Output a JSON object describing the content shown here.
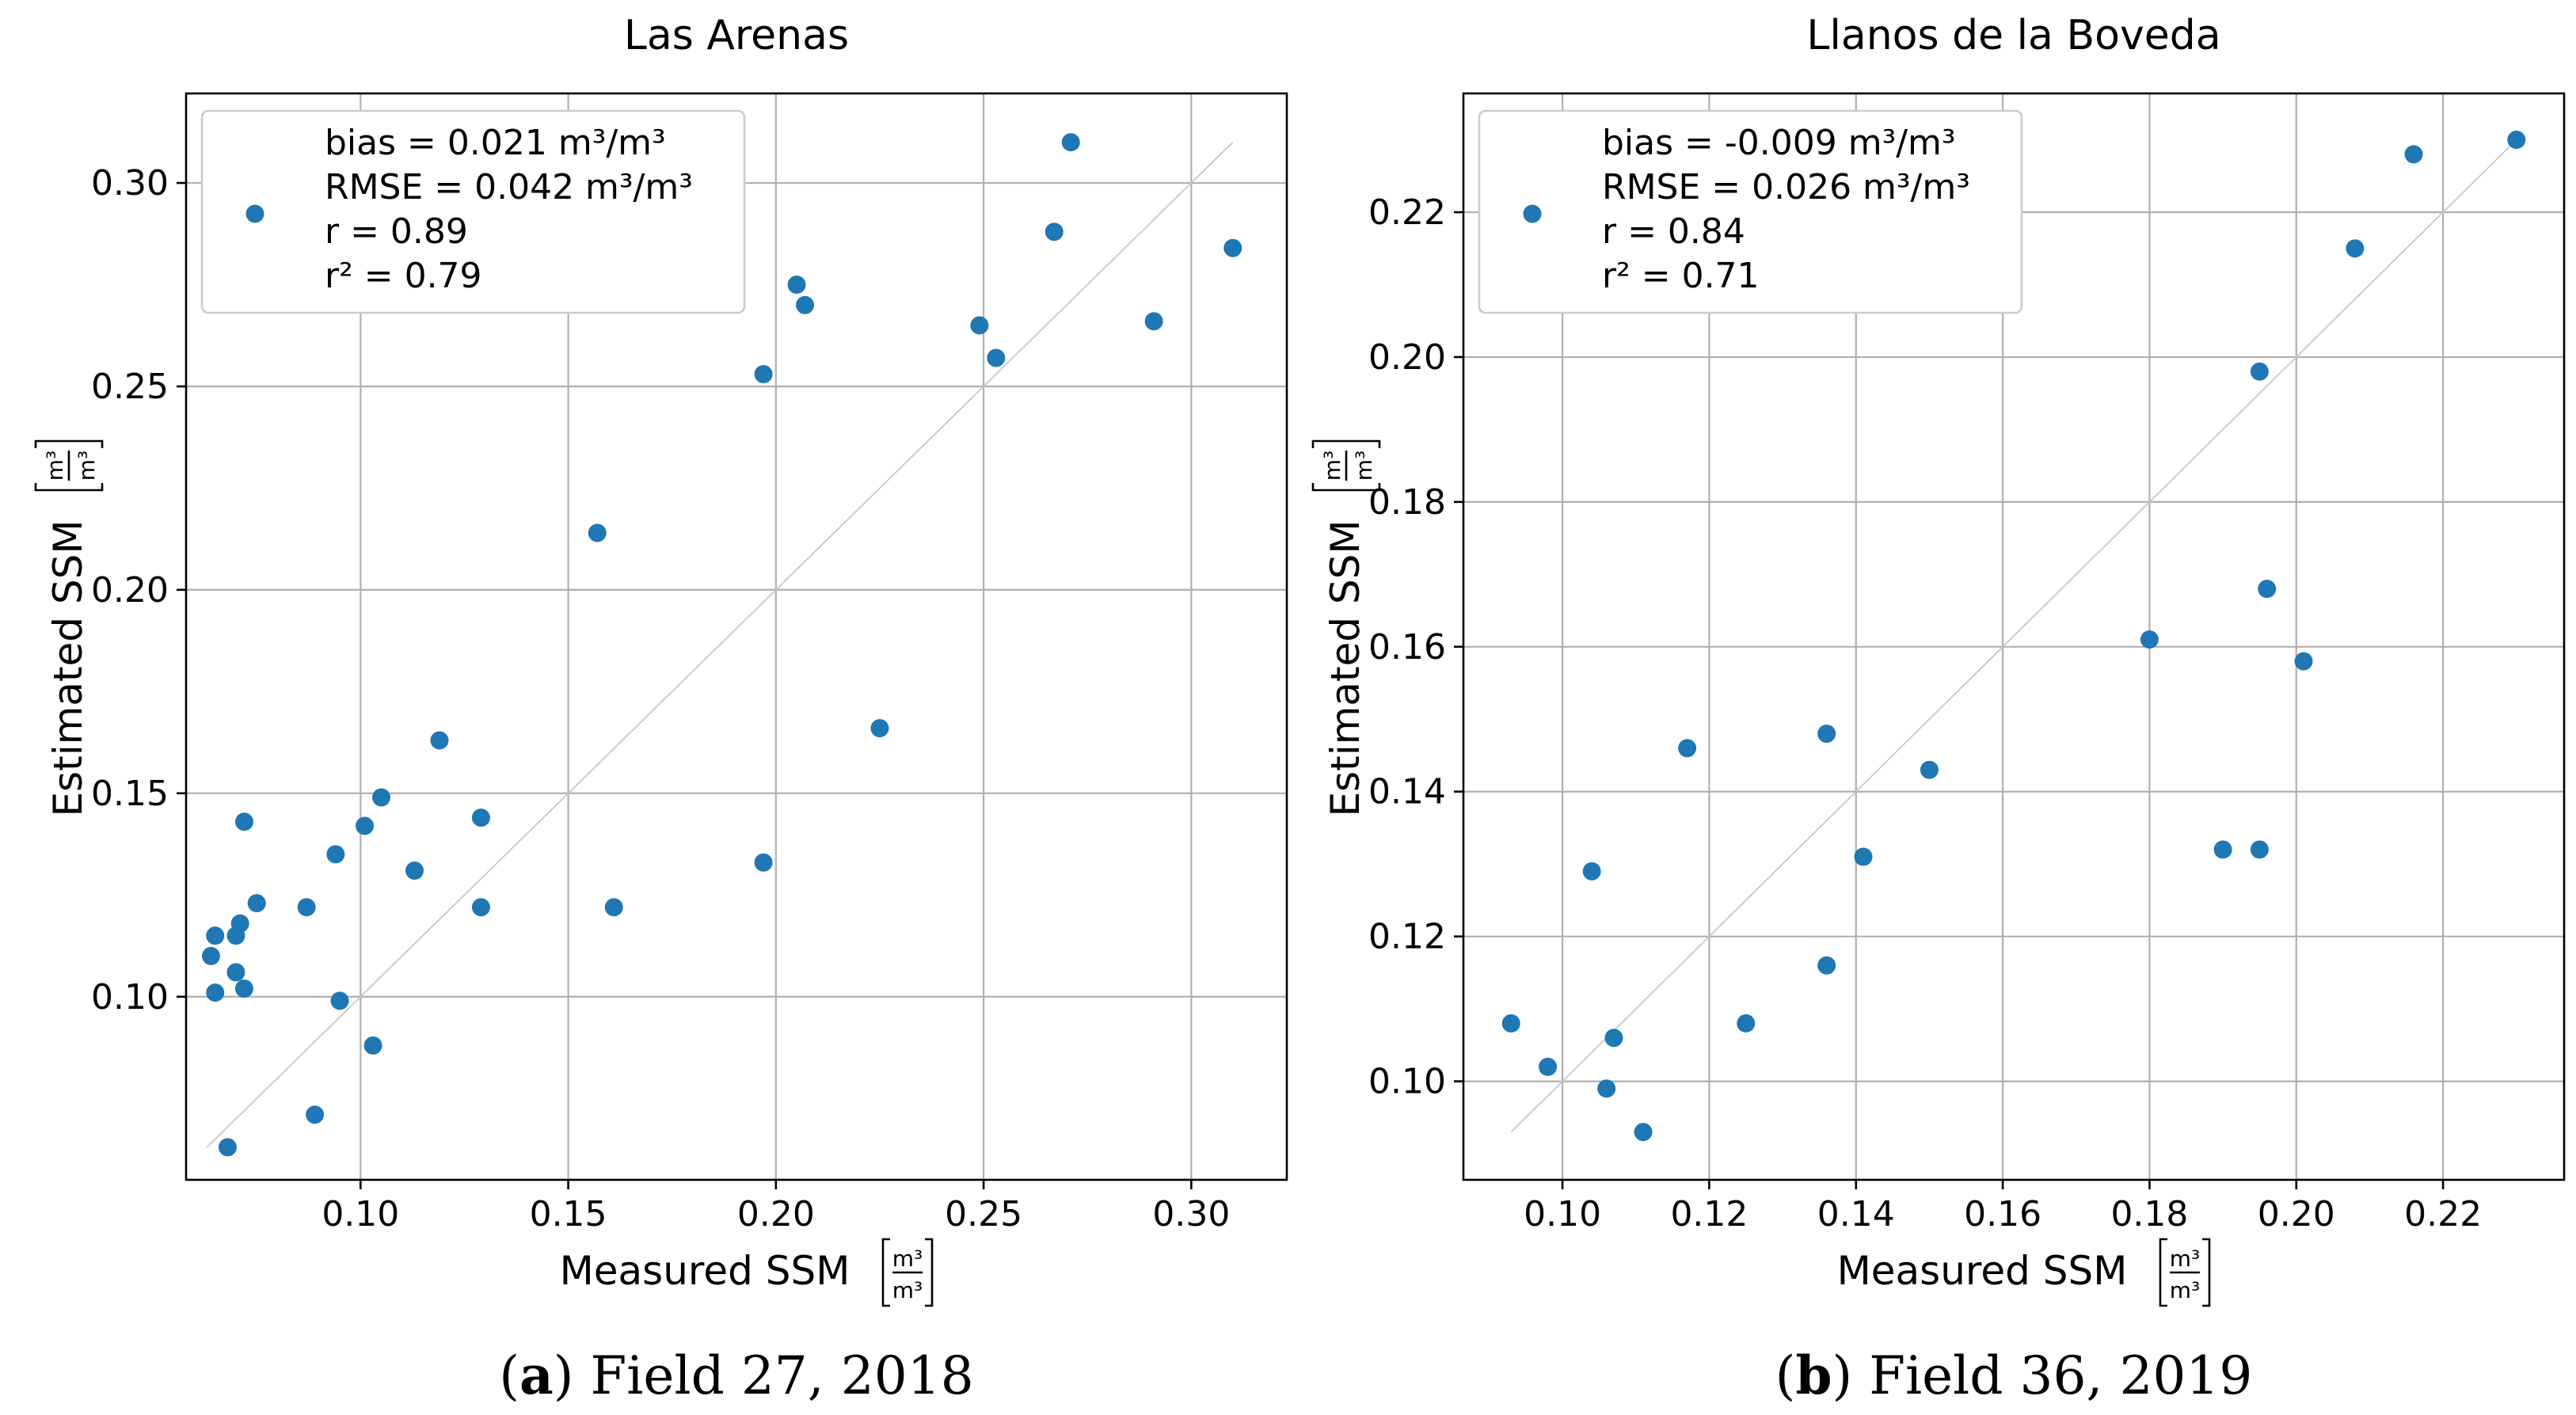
{
  "chart_data": [
    {
      "type": "scatter",
      "title": "Las Arenas",
      "caption_label": "a",
      "caption_text": "Field 27, 2018",
      "xlabel": "Measured SSM",
      "ylabel": "Estimated SSM",
      "unit_num": "m³",
      "unit_den": "m³",
      "xlim": [
        0.058,
        0.323
      ],
      "ylim": [
        0.055,
        0.322
      ],
      "xticks": [
        0.1,
        0.15,
        0.2,
        0.25,
        0.3
      ],
      "yticks": [
        0.1,
        0.15,
        0.2,
        0.25,
        0.3
      ],
      "xtick_labels": [
        "0.10",
        "0.15",
        "0.20",
        "0.25",
        "0.30"
      ],
      "ytick_labels": [
        "0.10",
        "0.15",
        "0.20",
        "0.25",
        "0.30"
      ],
      "identity": [
        0.063,
        0.31
      ],
      "legend": {
        "bias": "bias = 0.021 m³/m³",
        "rmse": "RMSE = 0.042 m³/m³",
        "r": "r = 0.89",
        "r2": "r² = 0.79"
      },
      "x": [
        0.064,
        0.065,
        0.065,
        0.068,
        0.07,
        0.07,
        0.071,
        0.072,
        0.072,
        0.075,
        0.087,
        0.089,
        0.094,
        0.095,
        0.101,
        0.103,
        0.105,
        0.113,
        0.119,
        0.129,
        0.129,
        0.157,
        0.161,
        0.197,
        0.197,
        0.205,
        0.207,
        0.225,
        0.249,
        0.253,
        0.267,
        0.271,
        0.291,
        0.31
      ],
      "y": [
        0.11,
        0.115,
        0.101,
        0.063,
        0.115,
        0.106,
        0.118,
        0.143,
        0.102,
        0.123,
        0.122,
        0.071,
        0.135,
        0.099,
        0.142,
        0.088,
        0.149,
        0.131,
        0.163,
        0.144,
        0.122,
        0.214,
        0.122,
        0.253,
        0.133,
        0.275,
        0.27,
        0.166,
        0.265,
        0.257,
        0.288,
        0.31,
        0.266,
        0.284
      ]
    },
    {
      "type": "scatter",
      "title": "Llanos de la Boveda",
      "caption_label": "b",
      "caption_text": "Field 36, 2019",
      "xlabel": "Measured SSM",
      "ylabel": "Estimated SSM",
      "unit_num": "m³",
      "unit_den": "m³",
      "xlim": [
        0.0865,
        0.2365
      ],
      "ylim": [
        0.0864,
        0.2364
      ],
      "xticks": [
        0.1,
        0.12,
        0.14,
        0.16,
        0.18,
        0.2,
        0.22
      ],
      "yticks": [
        0.1,
        0.12,
        0.14,
        0.16,
        0.18,
        0.2,
        0.22
      ],
      "xtick_labels": [
        "0.10",
        "0.12",
        "0.14",
        "0.16",
        "0.18",
        "0.20",
        "0.22"
      ],
      "ytick_labels": [
        "0.10",
        "0.12",
        "0.14",
        "0.16",
        "0.18",
        "0.20",
        "0.22"
      ],
      "identity": [
        0.093,
        0.23
      ],
      "legend": {
        "bias": "bias = -0.009 m³/m³",
        "rmse": "RMSE = 0.026 m³/m³",
        "r": "r = 0.84",
        "r2": "r² = 0.71"
      },
      "x": [
        0.093,
        0.098,
        0.104,
        0.106,
        0.107,
        0.111,
        0.117,
        0.125,
        0.136,
        0.136,
        0.141,
        0.15,
        0.18,
        0.19,
        0.195,
        0.195,
        0.196,
        0.201,
        0.208,
        0.216,
        0.23
      ],
      "y": [
        0.108,
        0.102,
        0.129,
        0.099,
        0.106,
        0.093,
        0.146,
        0.108,
        0.116,
        0.148,
        0.131,
        0.143,
        0.161,
        0.132,
        0.132,
        0.198,
        0.168,
        0.158,
        0.215,
        0.228,
        0.23
      ]
    }
  ]
}
